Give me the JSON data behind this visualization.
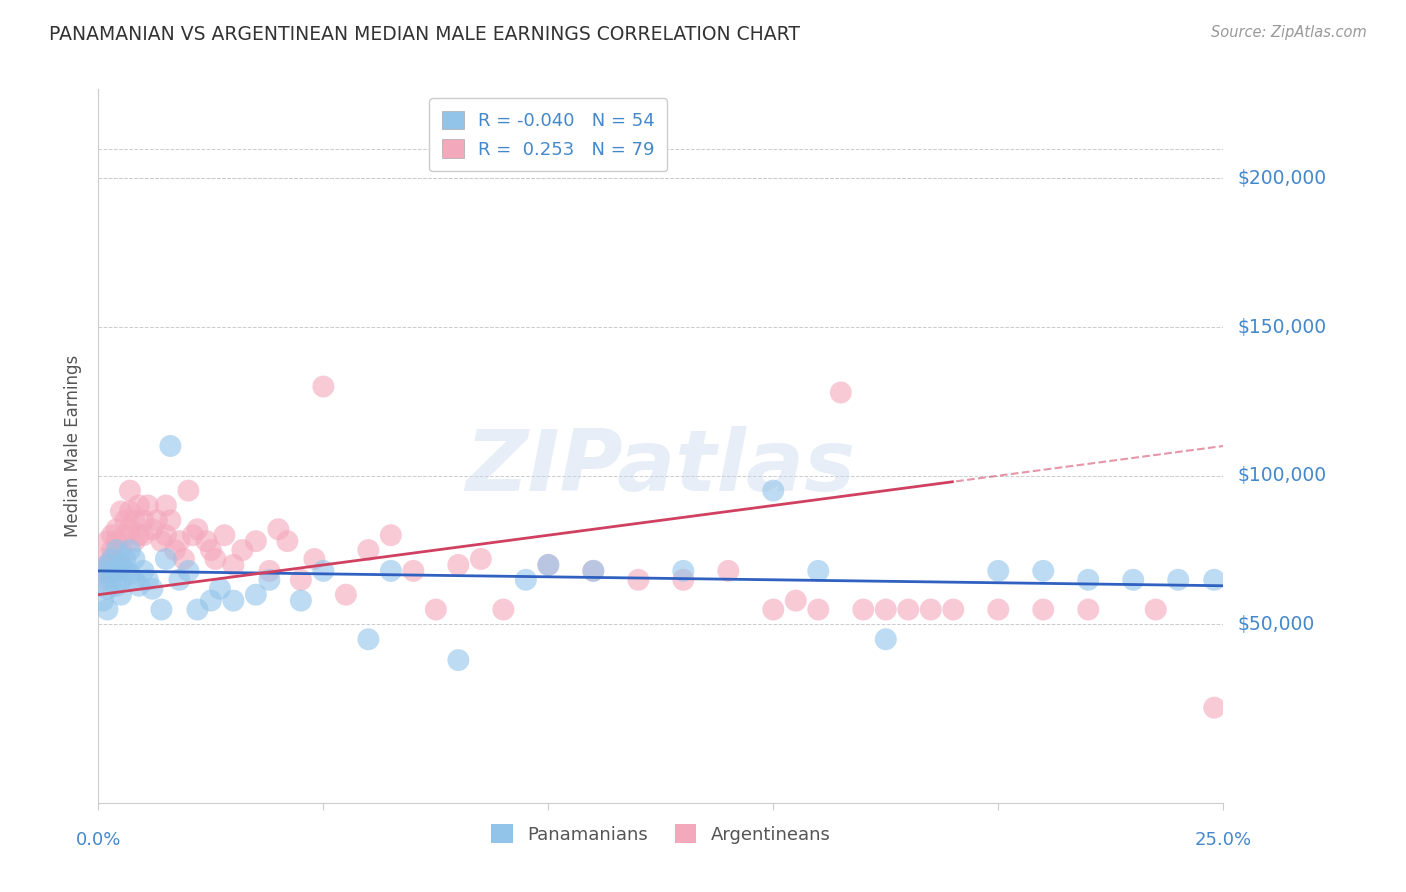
{
  "title": "PANAMANIAN VS ARGENTINEAN MEDIAN MALE EARNINGS CORRELATION CHART",
  "source": "Source: ZipAtlas.com",
  "ylabel": "Median Male Earnings",
  "watermark": "ZIPatlas",
  "xlim": [
    0.0,
    0.25
  ],
  "ylim": [
    -10000,
    230000
  ],
  "yticks": [
    50000,
    100000,
    150000,
    200000
  ],
  "ytick_labels": [
    "$50,000",
    "$100,000",
    "$150,000",
    "$200,000"
  ],
  "pan_R": -0.04,
  "pan_N": 54,
  "arg_R": 0.253,
  "arg_N": 79,
  "pan_color": "#92C4EA",
  "arg_color": "#F4A8BC",
  "pan_line_color": "#3060C0",
  "arg_line_color": "#D04060",
  "bg_color": "#FFFFFF",
  "grid_color": "#CCCCCC",
  "title_color": "#333333",
  "axis_label_color": "#555555",
  "tick_label_color": "#4488CC",
  "pan_x": [
    0.001,
    0.001,
    0.001,
    0.002,
    0.002,
    0.002,
    0.003,
    0.003,
    0.003,
    0.004,
    0.004,
    0.004,
    0.005,
    0.005,
    0.005,
    0.006,
    0.006,
    0.007,
    0.007,
    0.008,
    0.008,
    0.009,
    0.01,
    0.011,
    0.012,
    0.014,
    0.015,
    0.016,
    0.018,
    0.02,
    0.022,
    0.025,
    0.027,
    0.03,
    0.035,
    0.038,
    0.045,
    0.05,
    0.06,
    0.065,
    0.08,
    0.095,
    0.1,
    0.11,
    0.13,
    0.15,
    0.16,
    0.175,
    0.2,
    0.21,
    0.22,
    0.23,
    0.24,
    0.248
  ],
  "pan_y": [
    65000,
    68000,
    58000,
    62000,
    70000,
    55000,
    68000,
    65000,
    72000,
    63000,
    68000,
    75000,
    70000,
    65000,
    60000,
    68000,
    72000,
    67000,
    75000,
    65000,
    72000,
    63000,
    68000,
    65000,
    62000,
    55000,
    72000,
    110000,
    65000,
    68000,
    55000,
    58000,
    62000,
    58000,
    60000,
    65000,
    58000,
    68000,
    45000,
    68000,
    38000,
    65000,
    70000,
    68000,
    68000,
    95000,
    68000,
    45000,
    68000,
    68000,
    65000,
    65000,
    65000,
    65000
  ],
  "arg_x": [
    0.001,
    0.001,
    0.002,
    0.002,
    0.002,
    0.003,
    0.003,
    0.003,
    0.003,
    0.004,
    0.004,
    0.004,
    0.005,
    0.005,
    0.005,
    0.006,
    0.006,
    0.007,
    0.007,
    0.007,
    0.008,
    0.008,
    0.009,
    0.009,
    0.01,
    0.01,
    0.011,
    0.012,
    0.013,
    0.014,
    0.015,
    0.015,
    0.016,
    0.017,
    0.018,
    0.019,
    0.02,
    0.021,
    0.022,
    0.024,
    0.025,
    0.026,
    0.028,
    0.03,
    0.032,
    0.035,
    0.038,
    0.04,
    0.042,
    0.045,
    0.048,
    0.05,
    0.055,
    0.06,
    0.065,
    0.07,
    0.075,
    0.08,
    0.085,
    0.09,
    0.1,
    0.11,
    0.12,
    0.13,
    0.14,
    0.15,
    0.155,
    0.16,
    0.165,
    0.17,
    0.175,
    0.18,
    0.185,
    0.19,
    0.2,
    0.21,
    0.22,
    0.235,
    0.248
  ],
  "arg_y": [
    68000,
    72000,
    70000,
    78000,
    65000,
    75000,
    68000,
    80000,
    72000,
    78000,
    68000,
    82000,
    75000,
    88000,
    70000,
    85000,
    80000,
    95000,
    82000,
    88000,
    85000,
    78000,
    80000,
    90000,
    85000,
    80000,
    90000,
    82000,
    85000,
    78000,
    90000,
    80000,
    85000,
    75000,
    78000,
    72000,
    95000,
    80000,
    82000,
    78000,
    75000,
    72000,
    80000,
    70000,
    75000,
    78000,
    68000,
    82000,
    78000,
    65000,
    72000,
    130000,
    60000,
    75000,
    80000,
    68000,
    55000,
    70000,
    72000,
    55000,
    70000,
    68000,
    65000,
    65000,
    68000,
    55000,
    58000,
    55000,
    128000,
    55000,
    55000,
    55000,
    55000,
    55000,
    55000,
    55000,
    55000,
    55000,
    22000
  ]
}
